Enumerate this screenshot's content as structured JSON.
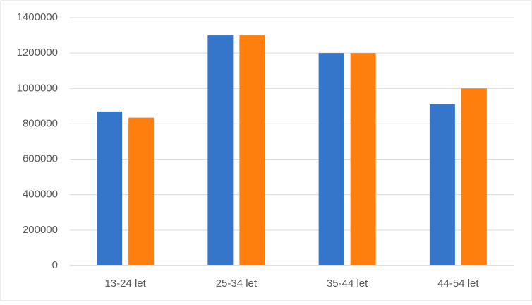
{
  "chart_data": {
    "type": "bar",
    "categories": [
      "13-24 let",
      "25-34 let",
      "35-44 let",
      "44-54 let"
    ],
    "series": [
      {
        "color": "#3575ca",
        "values": [
          870000,
          1300000,
          1200000,
          910000
        ]
      },
      {
        "color": "#ff7f0e",
        "values": [
          835000,
          1300000,
          1200000,
          1000000
        ]
      }
    ],
    "ylim": [
      0,
      1400000
    ],
    "yticks": [
      0,
      200000,
      400000,
      600000,
      800000,
      1000000,
      1200000,
      1400000
    ],
    "grid": true
  }
}
